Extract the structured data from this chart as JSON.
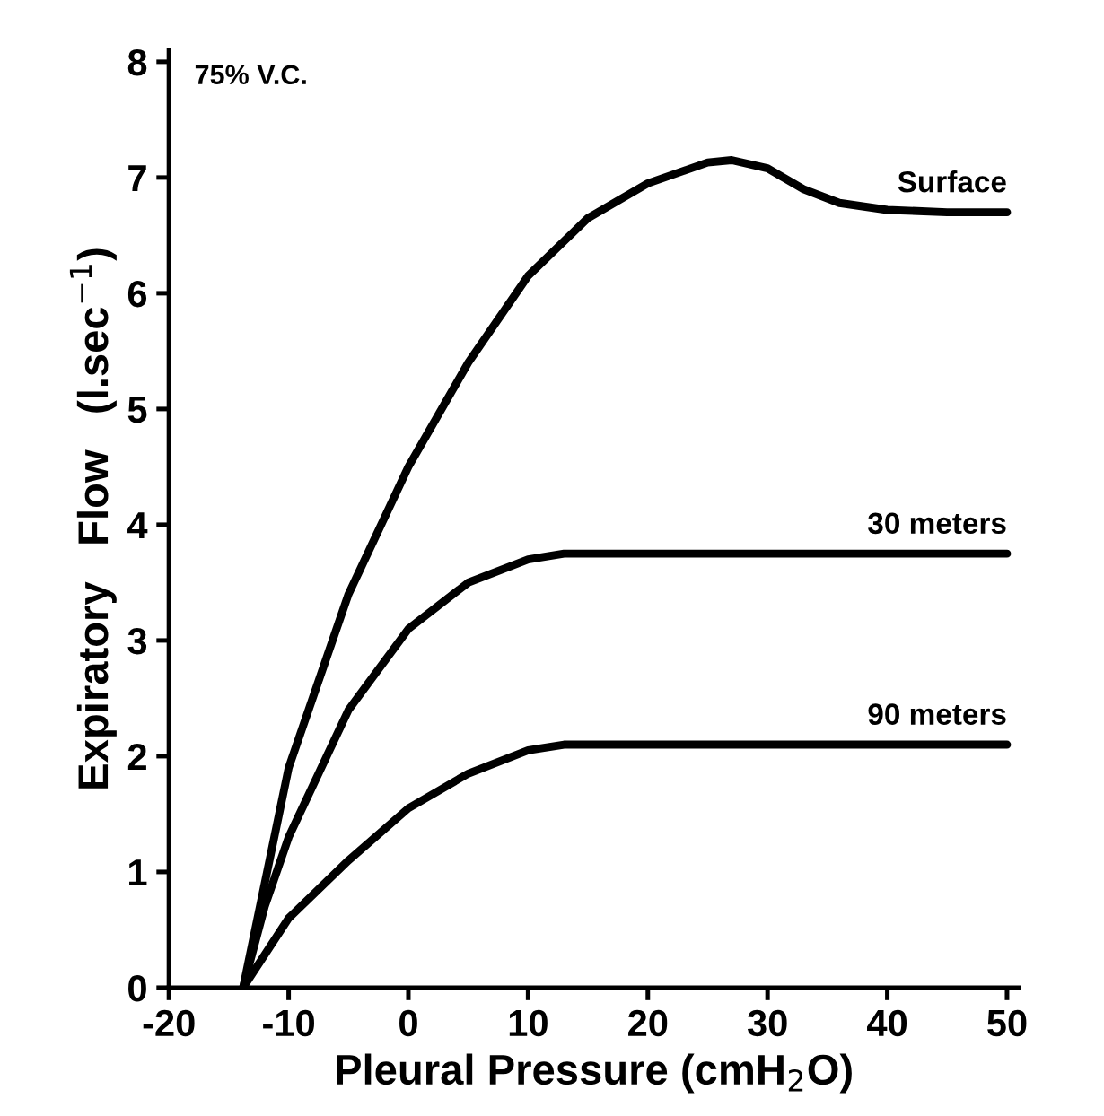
{
  "chart_data": {
    "type": "line",
    "xlabel": "Pleural Pressure (cmH$_{2}$O)",
    "ylabel": "Expiratory   Flow   (l.sec$^{−1}$)",
    "annotations": [
      "75% V.C."
    ],
    "xlim": [
      -20,
      51
    ],
    "ylim": [
      0,
      8.1
    ],
    "xticks": [
      -20,
      -10,
      0,
      10,
      20,
      30,
      40,
      50
    ],
    "yticks": [
      0,
      1,
      2,
      3,
      4,
      5,
      6,
      7,
      8
    ],
    "grid": false,
    "legend": false,
    "marker": "none",
    "line_style": "solid",
    "series": [
      {
        "name": "Surface",
        "color": "#000000",
        "x": [
          -13.8,
          -12,
          -10,
          -5,
          0,
          5,
          10,
          15,
          20,
          25,
          27,
          30,
          33,
          36,
          40,
          45,
          50
        ],
        "values": [
          0,
          0.9,
          1.9,
          3.4,
          4.5,
          5.4,
          6.15,
          6.65,
          6.95,
          7.13,
          7.15,
          7.08,
          6.9,
          6.78,
          6.72,
          6.7,
          6.7
        ]
      },
      {
        "name": "30 meters",
        "color": "#000000",
        "x": [
          -13.8,
          -12,
          -10,
          -5,
          0,
          5,
          10,
          13,
          20,
          50
        ],
        "values": [
          0,
          0.7,
          1.3,
          2.4,
          3.1,
          3.5,
          3.7,
          3.75,
          3.75,
          3.75
        ]
      },
      {
        "name": "90 meters",
        "color": "#000000",
        "x": [
          -13.8,
          -10,
          -5,
          0,
          5,
          10,
          13,
          50
        ],
        "values": [
          0,
          0.6,
          1.1,
          1.55,
          1.85,
          2.05,
          2.1,
          2.1
        ]
      }
    ]
  }
}
